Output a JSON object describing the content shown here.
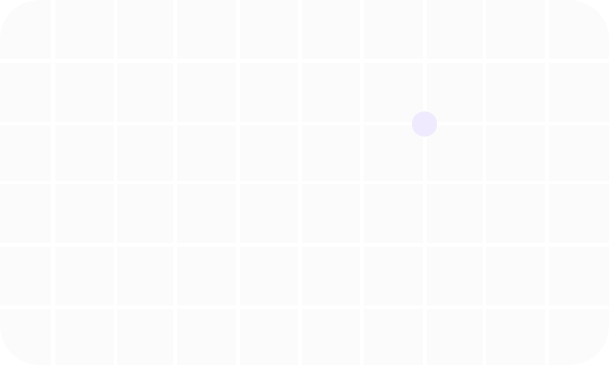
{
  "canvas": {
    "background": "#ffffff",
    "tile_color": "#fbfbfb",
    "marker_color": "#f0eafe",
    "columns": 10,
    "rows": 6
  }
}
